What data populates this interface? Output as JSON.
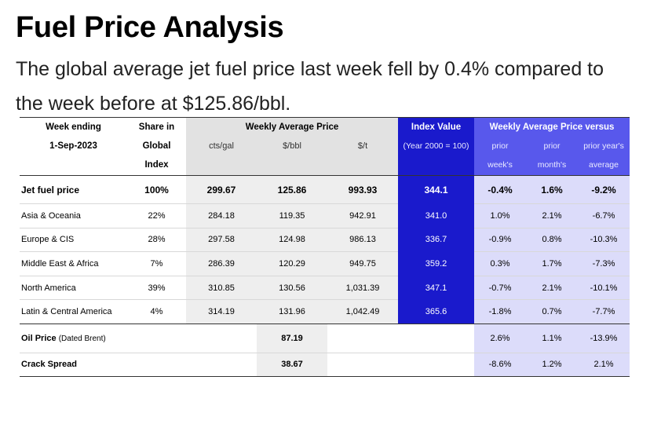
{
  "header": {
    "title": "Fuel Price Analysis",
    "subtitle": "The global average jet fuel price last week fell by 0.4% compared to the week before at $125.86/bbl."
  },
  "table": {
    "week_ending_label": "Week ending",
    "week_ending_date": "1-Sep-2023",
    "share_label_1": "Share in",
    "share_label_2": "Global",
    "share_label_3": "Index",
    "weekly_avg_label": "Weekly Average Price",
    "units": [
      "cts/gal",
      "$/bbl",
      "$/t"
    ],
    "index_label": "Index Value",
    "index_sub": "(Year 2000 = 100)",
    "versus_label": "Weekly Average Price versus",
    "versus_cols": [
      {
        "line1": "prior",
        "line2": "week's"
      },
      {
        "line1": "prior",
        "line2": "month's"
      },
      {
        "line1": "prior year's",
        "line2": "average"
      }
    ],
    "jet_fuel": {
      "label": "Jet fuel price",
      "share": "100%",
      "cts_gal": "299.67",
      "usd_bbl": "125.86",
      "usd_t": "993.93",
      "index": "344.1",
      "week": "-0.4%",
      "month": "1.6%",
      "year": "-9.2%"
    },
    "regions": [
      {
        "label": "Asia & Oceania",
        "share": "22%",
        "cts_gal": "284.18",
        "usd_bbl": "119.35",
        "usd_t": "942.91",
        "index": "341.0",
        "week": "1.0%",
        "month": "2.1%",
        "year": "-6.7%"
      },
      {
        "label": "Europe & CIS",
        "share": "28%",
        "cts_gal": "297.58",
        "usd_bbl": "124.98",
        "usd_t": "986.13",
        "index": "336.7",
        "week": "-0.9%",
        "month": "0.8%",
        "year": "-10.3%"
      },
      {
        "label": "Middle East & Africa",
        "share": "7%",
        "cts_gal": "286.39",
        "usd_bbl": "120.29",
        "usd_t": "949.75",
        "index": "359.2",
        "week": "0.3%",
        "month": "1.7%",
        "year": "-7.3%"
      },
      {
        "label": "North America",
        "share": "39%",
        "cts_gal": "310.85",
        "usd_bbl": "130.56",
        "usd_t": "1,031.39",
        "index": "347.1",
        "week": "-0.7%",
        "month": "2.1%",
        "year": "-10.1%"
      },
      {
        "label": "Latin & Central America",
        "share": "4%",
        "cts_gal": "314.19",
        "usd_bbl": "131.96",
        "usd_t": "1,042.49",
        "index": "365.6",
        "week": "-1.8%",
        "month": "0.7%",
        "year": "-7.7%"
      }
    ],
    "oil_price": {
      "label": "Oil Price",
      "label_sub": "(Dated Brent)",
      "usd_bbl": "87.19",
      "week": "2.6%",
      "month": "1.1%",
      "year": "-13.9%"
    },
    "crack_spread": {
      "label": "Crack Spread",
      "usd_bbl": "38.67",
      "week": "-8.6%",
      "month": "1.2%",
      "year": "2.1%"
    }
  }
}
